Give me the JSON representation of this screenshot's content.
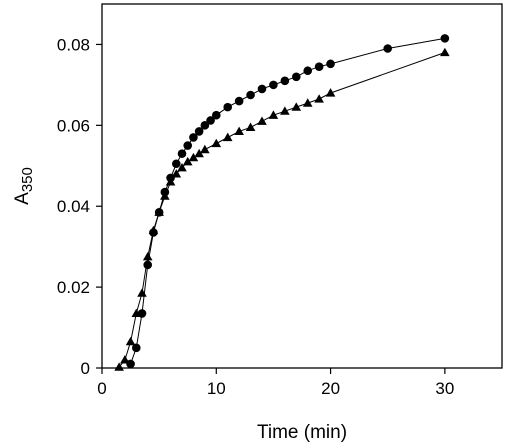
{
  "chart_data": {
    "type": "scatter",
    "xlabel": "Time (min)",
    "ylabel_main": "A",
    "ylabel_sub": "350",
    "xlim": [
      0,
      35
    ],
    "ylim": [
      0,
      0.09
    ],
    "x_ticks": [
      0,
      10,
      20,
      30
    ],
    "x_tick_labels": [
      "0",
      "10",
      "20",
      "30"
    ],
    "y_ticks": [
      0,
      0.02,
      0.04,
      0.06,
      0.08
    ],
    "y_tick_labels": [
      "0",
      "0.02",
      "0.04",
      "0.06",
      "0.08"
    ],
    "grid": false,
    "series": [
      {
        "marker": "circle",
        "color": "#000000",
        "points": [
          [
            2.5,
            0.001
          ],
          [
            3.0,
            0.005
          ],
          [
            3.5,
            0.0135
          ],
          [
            4.0,
            0.0255
          ],
          [
            4.5,
            0.0335
          ],
          [
            5.0,
            0.0385
          ],
          [
            5.5,
            0.0435
          ],
          [
            6.0,
            0.047
          ],
          [
            6.5,
            0.0505
          ],
          [
            7.0,
            0.053
          ],
          [
            7.5,
            0.055
          ],
          [
            8.0,
            0.057
          ],
          [
            8.5,
            0.0585
          ],
          [
            9.0,
            0.06
          ],
          [
            9.5,
            0.0612
          ],
          [
            10.0,
            0.0625
          ],
          [
            11.0,
            0.0645
          ],
          [
            12.0,
            0.066
          ],
          [
            13.0,
            0.0675
          ],
          [
            14.0,
            0.069
          ],
          [
            15.0,
            0.07
          ],
          [
            16.0,
            0.071
          ],
          [
            17.0,
            0.072
          ],
          [
            18.0,
            0.0735
          ],
          [
            19.0,
            0.0745
          ],
          [
            20.0,
            0.0752
          ],
          [
            25.0,
            0.079
          ],
          [
            30.0,
            0.0815
          ]
        ]
      },
      {
        "marker": "triangle",
        "color": "#000000",
        "points": [
          [
            1.5,
            0.0002
          ],
          [
            2.0,
            0.002
          ],
          [
            2.5,
            0.0065
          ],
          [
            3.0,
            0.0135
          ],
          [
            3.5,
            0.0185
          ],
          [
            4.0,
            0.0275
          ],
          [
            4.5,
            0.034
          ],
          [
            5.0,
            0.0385
          ],
          [
            5.5,
            0.0425
          ],
          [
            6.0,
            0.046
          ],
          [
            6.5,
            0.048
          ],
          [
            7.0,
            0.0495
          ],
          [
            7.5,
            0.051
          ],
          [
            8.0,
            0.052
          ],
          [
            8.5,
            0.053
          ],
          [
            9.0,
            0.054
          ],
          [
            10.0,
            0.0555
          ],
          [
            11.0,
            0.057
          ],
          [
            12.0,
            0.0585
          ],
          [
            13.0,
            0.0595
          ],
          [
            14.0,
            0.061
          ],
          [
            15.0,
            0.0625
          ],
          [
            16.0,
            0.0635
          ],
          [
            17.0,
            0.0645
          ],
          [
            18.0,
            0.0655
          ],
          [
            19.0,
            0.0665
          ],
          [
            20.0,
            0.068
          ],
          [
            30.0,
            0.078
          ]
        ]
      }
    ]
  }
}
